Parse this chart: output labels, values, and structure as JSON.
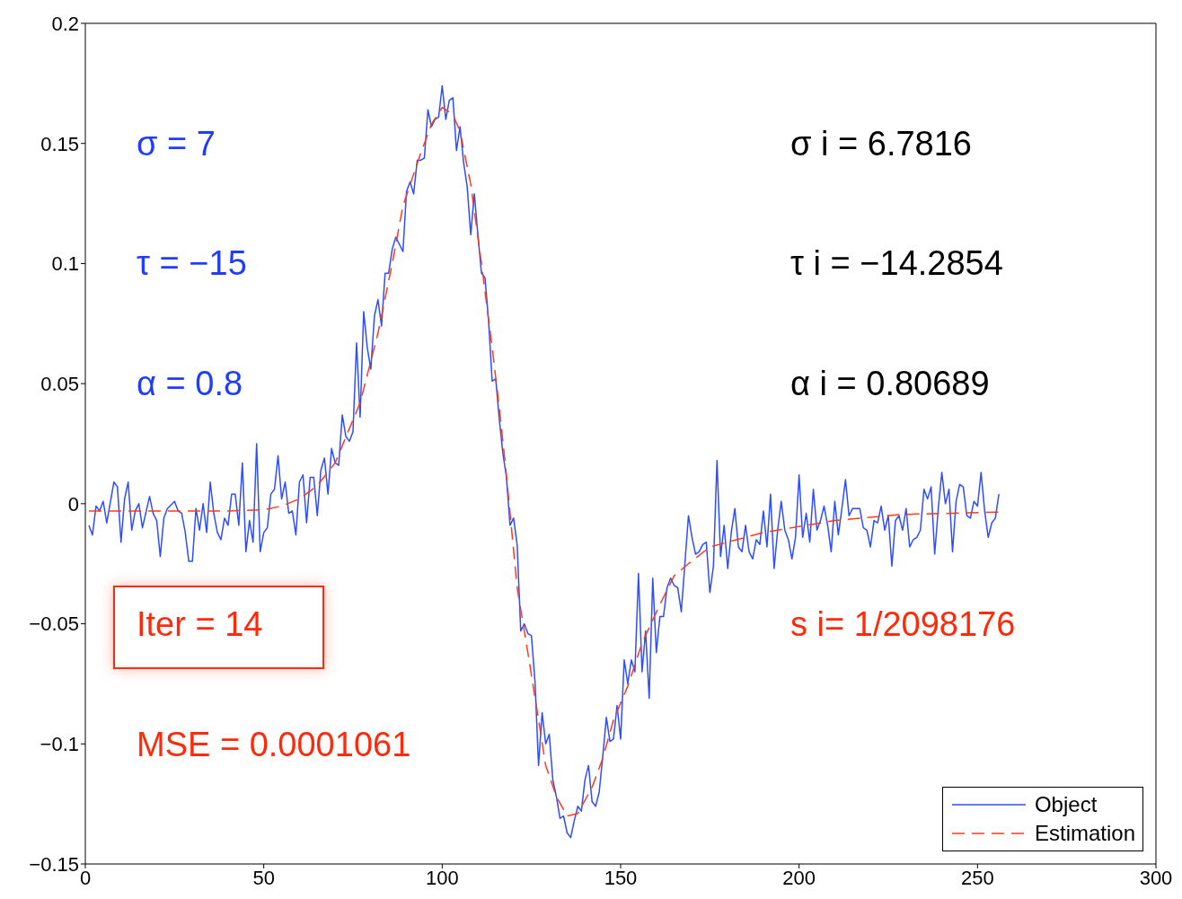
{
  "chart_data": {
    "type": "line",
    "xlim": [
      0,
      300
    ],
    "xticks": [
      0,
      50,
      100,
      150,
      200,
      250,
      300
    ],
    "ylim": [
      -0.15,
      0.2
    ],
    "yticks": [
      {
        "value": -0.15,
        "label": "−0.15"
      },
      {
        "value": -0.1,
        "label": "−0.1"
      },
      {
        "value": -0.05,
        "label": "−0.05"
      },
      0,
      0.05,
      0.1,
      0.15,
      0.2
    ],
    "legend": "bottom right",
    "series": [
      {
        "name": "Object",
        "color": "#2e4dff",
        "line_style": "solid",
        "x": [
          1,
          2,
          3,
          4,
          5,
          6,
          8,
          9,
          10,
          11,
          12,
          13,
          14,
          15,
          16,
          18,
          19,
          20,
          21,
          22,
          23,
          25,
          26,
          27,
          28,
          29,
          30,
          31,
          32,
          33,
          34,
          35,
          36,
          37,
          38,
          39,
          40,
          41,
          42,
          43,
          44,
          45,
          46,
          47,
          48,
          49,
          50,
          51,
          52,
          53,
          54,
          55,
          56,
          57,
          58,
          59,
          60,
          61,
          62,
          63,
          64,
          65,
          66,
          67,
          68,
          69,
          70,
          71,
          72,
          73,
          74,
          75,
          76,
          77,
          78,
          79,
          80,
          81,
          82,
          83,
          84,
          85,
          86,
          87,
          88,
          89,
          90,
          91,
          92,
          93,
          94,
          95,
          96,
          97,
          98,
          99,
          100,
          101,
          102,
          103,
          104,
          105,
          106,
          107,
          108,
          109,
          110,
          111,
          112,
          113,
          114,
          115,
          116,
          117,
          118,
          119,
          120,
          121,
          122,
          123,
          124,
          125,
          126,
          127,
          128,
          129,
          130,
          131,
          132,
          133,
          134,
          135,
          136,
          137,
          138,
          139,
          140,
          141,
          142,
          143,
          144,
          145,
          146,
          147,
          148,
          149,
          150,
          151,
          152,
          153,
          154,
          155,
          156,
          157,
          158,
          159,
          160,
          161,
          162,
          163,
          164,
          165,
          166,
          167,
          168,
          169,
          170,
          171,
          172,
          173,
          174,
          175,
          176,
          177,
          178,
          179,
          180,
          181,
          182,
          183,
          184,
          185,
          186,
          187,
          188,
          189,
          190,
          191,
          192,
          193,
          194,
          195,
          196,
          197,
          198,
          199,
          200,
          201,
          202,
          203,
          204,
          205,
          206,
          207,
          208,
          209,
          210,
          211,
          212,
          213,
          214,
          215,
          217,
          218,
          219,
          220,
          221,
          222,
          223,
          224,
          225,
          226,
          227,
          228,
          229,
          230,
          231,
          232,
          233,
          234,
          235,
          236,
          237,
          238,
          239,
          240,
          241,
          242,
          243,
          244,
          245,
          246,
          247,
          248,
          249,
          250,
          251,
          252,
          253,
          254,
          255,
          256
        ],
        "values": [
          -0.009,
          -0.013,
          -0.001,
          -0.003,
          0.001,
          -0.008,
          0.009,
          0.007,
          -0.016,
          0.002,
          0.009,
          -0.011,
          -0.003,
          0,
          -0.01,
          0.003,
          -0.004,
          -0.007,
          -0.022,
          -0.006,
          -0.002,
          0.001,
          -0.003,
          -0.004,
          -0.012,
          -0.024,
          -0.024,
          -0.002,
          -0.011,
          0,
          -0.012,
          0.009,
          -0.004,
          -0.012,
          -0.015,
          -0.006,
          -0.009,
          0.004,
          0.004,
          -0.009,
          0.017,
          -0.02,
          -0.007,
          -0.016,
          0.025,
          -0.02,
          -0.012,
          -0.01,
          0.004,
          0.006,
          0.02,
          0.002,
          0.009,
          -0.004,
          -0.003,
          -0.013,
          0.009,
          0.012,
          -0.008,
          0.011,
          0.011,
          -0.005,
          0.014,
          0.019,
          0.004,
          0.023,
          0.017,
          0.016,
          0.037,
          0.028,
          0.026,
          0.03,
          0.067,
          0.036,
          0.08,
          0.065,
          0.056,
          0.078,
          0.085,
          0.074,
          0.096,
          0.096,
          0.106,
          0.111,
          0.108,
          0.105,
          0.13,
          0.134,
          0.129,
          0.143,
          0.143,
          0.144,
          0.164,
          0.157,
          0.16,
          0.161,
          0.174,
          0.16,
          0.168,
          0.169,
          0.147,
          0.157,
          0.142,
          0.132,
          0.112,
          0.129,
          0.112,
          0.096,
          0.094,
          0.076,
          0.051,
          0.052,
          0.035,
          0.021,
          0.011,
          -0.009,
          -0.006,
          -0.017,
          -0.053,
          -0.05,
          -0.054,
          -0.055,
          -0.074,
          -0.109,
          -0.087,
          -0.1,
          -0.096,
          -0.115,
          -0.122,
          -0.131,
          -0.13,
          -0.137,
          -0.139,
          -0.132,
          -0.126,
          -0.128,
          -0.115,
          -0.109,
          -0.124,
          -0.126,
          -0.12,
          -0.105,
          -0.089,
          -0.099,
          -0.098,
          -0.084,
          -0.098,
          -0.065,
          -0.075,
          -0.065,
          -0.07,
          -0.029,
          -0.07,
          -0.053,
          -0.081,
          -0.031,
          -0.062,
          -0.047,
          -0.047,
          -0.035,
          -0.031,
          -0.034,
          -0.035,
          -0.045,
          -0.025,
          -0.005,
          -0.014,
          -0.021,
          -0.02,
          -0.017,
          -0.016,
          -0.037,
          -0.026,
          0.018,
          -0.022,
          -0.009,
          -0.027,
          -0.012,
          -0.002,
          -0.018,
          -0.02,
          -0.009,
          -0.02,
          -0.023,
          -0.015,
          -0.017,
          -0.003,
          -0.018,
          0.004,
          -0.027,
          -0.011,
          0.001,
          -0.011,
          -0.015,
          -0.023,
          -0.014,
          0.012,
          -0.014,
          -0.004,
          -0.016,
          0.006,
          -0.011,
          -0.007,
          -0.001,
          -0.009,
          -0.02,
          0.001,
          -0.013,
          -0.002,
          0.01,
          -0.005,
          -0.002,
          -0.002,
          -0.01,
          -0.011,
          -0.018,
          -0.007,
          -0.008,
          -0.001,
          -0.011,
          -0.005,
          -0.026,
          -0.007,
          -0.005,
          -0.011,
          -0.002,
          -0.018,
          -0.015,
          -0.014,
          -0.011,
          0.006,
          0.002,
          0.007,
          -0.021,
          -0.002,
          0.013,
          0,
          0.006,
          -0.02,
          0.001,
          0.008,
          0.007,
          -0.005,
          -0.006,
          0.001,
          -0.001,
          0.013,
          -0.003,
          -0.014,
          -0.008,
          -0.006,
          0.004
        ]
      },
      {
        "name": "Estimation",
        "color": "#ff3a1a",
        "line_style": "dashed",
        "x": [
          1,
          20,
          40,
          50,
          55,
          60,
          65,
          70,
          77,
          82,
          86,
          89,
          94,
          97,
          100,
          103,
          105,
          108,
          111,
          114,
          116,
          118,
          121,
          124,
          127,
          129,
          132,
          135,
          138,
          142,
          145,
          148,
          152,
          156,
          161,
          165,
          169,
          175,
          190,
          210,
          228,
          256
        ],
        "values": [
          -0.003,
          -0.003,
          -0.003,
          -0.0025,
          -0.001,
          0.002,
          0.0075,
          0.017,
          0.042,
          0.071,
          0.1,
          0.124,
          0.146,
          0.158,
          0.165,
          0.162,
          0.155,
          0.133,
          0.1,
          0.065,
          0.04,
          0.012,
          -0.035,
          -0.062,
          -0.09,
          -0.109,
          -0.122,
          -0.13,
          -0.129,
          -0.118,
          -0.106,
          -0.09,
          -0.076,
          -0.058,
          -0.042,
          -0.03,
          -0.025,
          -0.018,
          -0.012,
          -0.007,
          -0.0045,
          -0.0035
        ]
      }
    ],
    "annotations": [
      "σ = 7",
      "τ = −15",
      "α = 0.8",
      "σ i = 6.7816",
      "τ i = −14.2854",
      "α i = 0.80689",
      "Iter = 14",
      "MSE = 0.0001061",
      "s i= 1/2098176"
    ]
  }
}
